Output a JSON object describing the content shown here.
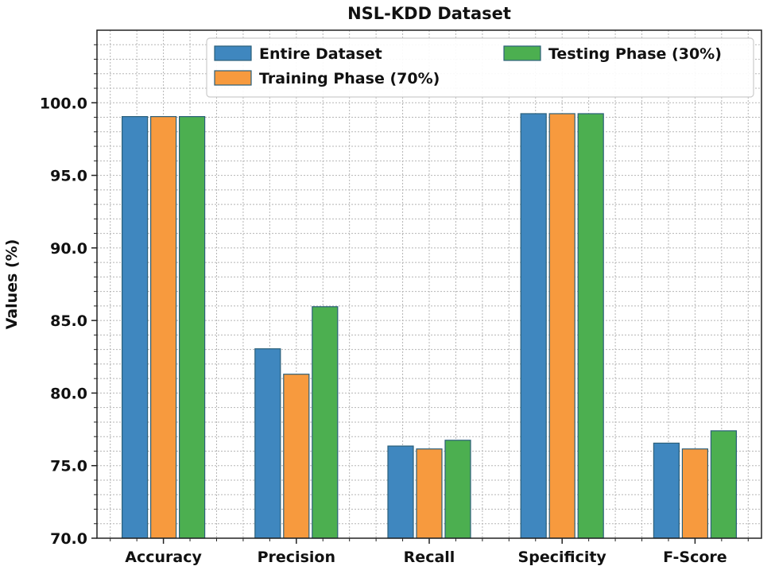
{
  "chart_data": {
    "type": "bar",
    "title": "NSL-KDD Dataset",
    "xlabel": "",
    "ylabel": "Values (%)",
    "ylim": [
      70,
      105
    ],
    "yticks": [
      "70.0",
      "75.0",
      "80.0",
      "85.0",
      "90.0",
      "95.0",
      "100.0"
    ],
    "grid": true,
    "legend_position": "top-right",
    "categories": [
      "Accuracy",
      "Precision",
      "Recall",
      "Specificity",
      "F-Score"
    ],
    "series": [
      {
        "name": "Entire Dataset",
        "color": "#3f87bf",
        "values": [
          99.05,
          83.05,
          76.35,
          99.25,
          76.55
        ]
      },
      {
        "name": "Training Phase (70%)",
        "color": "#f79a3e",
        "values": [
          99.05,
          81.3,
          76.15,
          99.25,
          76.15
        ]
      },
      {
        "name": "Testing Phase (30%)",
        "color": "#4caf50",
        "values": [
          99.05,
          85.95,
          76.75,
          99.25,
          77.4
        ]
      }
    ]
  }
}
